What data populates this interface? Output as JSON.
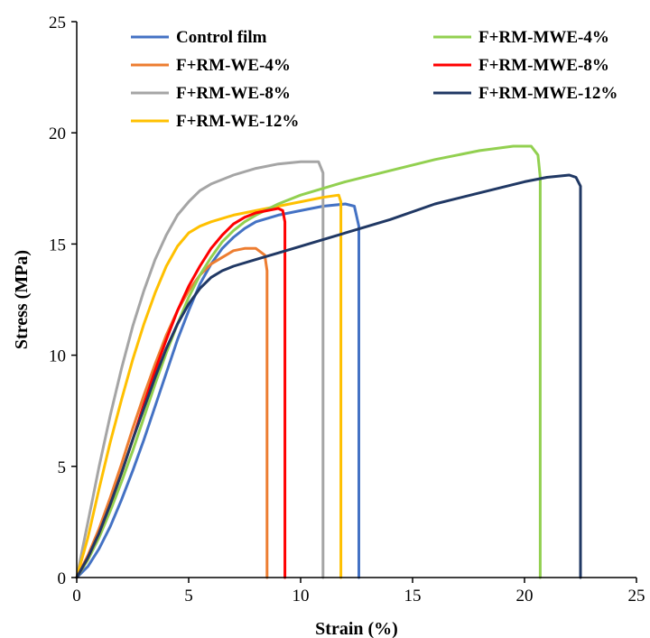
{
  "chart_data": {
    "type": "line",
    "title": "",
    "xlabel": "Strain (%)",
    "ylabel": "Stress (MPa)",
    "xlim": [
      0,
      25
    ],
    "ylim": [
      0,
      25
    ],
    "xticks": [
      "0",
      "5",
      "10",
      "15",
      "20",
      "25"
    ],
    "yticks": [
      "0",
      "5",
      "10",
      "15",
      "20",
      "25"
    ],
    "grid": false,
    "legend_position": "top",
    "series": [
      {
        "name": "Control film",
        "color": "#4472C4",
        "points": [
          [
            0,
            0
          ],
          [
            0.5,
            0.5
          ],
          [
            1,
            1.3
          ],
          [
            1.5,
            2.3
          ],
          [
            2,
            3.5
          ],
          [
            2.5,
            4.8
          ],
          [
            3,
            6.2
          ],
          [
            3.5,
            7.7
          ],
          [
            4,
            9.2
          ],
          [
            4.5,
            10.7
          ],
          [
            5,
            12.0
          ],
          [
            5.5,
            13.2
          ],
          [
            6,
            14.1
          ],
          [
            6.5,
            14.8
          ],
          [
            7,
            15.3
          ],
          [
            7.5,
            15.7
          ],
          [
            8,
            16.0
          ],
          [
            9,
            16.3
          ],
          [
            10,
            16.5
          ],
          [
            11,
            16.7
          ],
          [
            12,
            16.8
          ],
          [
            12.4,
            16.7
          ],
          [
            12.6,
            15.8
          ],
          [
            12.6,
            0
          ]
        ]
      },
      {
        "name": "F+RM-WE-4%",
        "color": "#ED7D31",
        "points": [
          [
            0,
            0
          ],
          [
            0.5,
            1.0
          ],
          [
            1,
            2.2
          ],
          [
            1.5,
            3.6
          ],
          [
            2,
            5.1
          ],
          [
            2.5,
            6.7
          ],
          [
            3,
            8.2
          ],
          [
            3.5,
            9.6
          ],
          [
            4,
            10.9
          ],
          [
            4.5,
            12.0
          ],
          [
            5,
            12.9
          ],
          [
            5.5,
            13.6
          ],
          [
            6,
            14.1
          ],
          [
            6.5,
            14.4
          ],
          [
            7,
            14.7
          ],
          [
            7.5,
            14.8
          ],
          [
            8,
            14.8
          ],
          [
            8.4,
            14.5
          ],
          [
            8.5,
            13.8
          ],
          [
            8.5,
            0
          ]
        ]
      },
      {
        "name": "F+RM-WE-8%",
        "color": "#A5A5A5",
        "points": [
          [
            0,
            0
          ],
          [
            0.3,
            1.5
          ],
          [
            0.7,
            3.5
          ],
          [
            1,
            5.0
          ],
          [
            1.5,
            7.3
          ],
          [
            2,
            9.4
          ],
          [
            2.5,
            11.3
          ],
          [
            3,
            12.9
          ],
          [
            3.5,
            14.3
          ],
          [
            4,
            15.4
          ],
          [
            4.5,
            16.3
          ],
          [
            5,
            16.9
          ],
          [
            5.5,
            17.4
          ],
          [
            6,
            17.7
          ],
          [
            7,
            18.1
          ],
          [
            8,
            18.4
          ],
          [
            9,
            18.6
          ],
          [
            10,
            18.7
          ],
          [
            10.8,
            18.7
          ],
          [
            11,
            18.2
          ],
          [
            11,
            0
          ]
        ]
      },
      {
        "name": "F+RM-WE-12%",
        "color": "#FFC000",
        "points": [
          [
            0,
            0
          ],
          [
            0.5,
            1.8
          ],
          [
            1,
            4.0
          ],
          [
            1.5,
            6.1
          ],
          [
            2,
            8.0
          ],
          [
            2.5,
            9.8
          ],
          [
            3,
            11.4
          ],
          [
            3.5,
            12.8
          ],
          [
            4,
            14.0
          ],
          [
            4.5,
            14.9
          ],
          [
            5,
            15.5
          ],
          [
            5.5,
            15.8
          ],
          [
            6,
            16.0
          ],
          [
            7,
            16.3
          ],
          [
            8,
            16.5
          ],
          [
            9,
            16.7
          ],
          [
            10,
            16.9
          ],
          [
            11,
            17.1
          ],
          [
            11.7,
            17.2
          ],
          [
            11.8,
            16.9
          ],
          [
            11.8,
            0
          ]
        ]
      },
      {
        "name": "F+RM-MWE-4%",
        "color": "#92D050",
        "points": [
          [
            0,
            0
          ],
          [
            0.5,
            0.8
          ],
          [
            1,
            1.8
          ],
          [
            1.5,
            3.0
          ],
          [
            2,
            4.3
          ],
          [
            2.5,
            5.7
          ],
          [
            3,
            7.2
          ],
          [
            3.5,
            8.7
          ],
          [
            4,
            10.1
          ],
          [
            4.5,
            11.4
          ],
          [
            5,
            12.6
          ],
          [
            5.5,
            13.6
          ],
          [
            6,
            14.4
          ],
          [
            6.5,
            15.1
          ],
          [
            7,
            15.6
          ],
          [
            7.5,
            16.0
          ],
          [
            8,
            16.3
          ],
          [
            9,
            16.8
          ],
          [
            10,
            17.2
          ],
          [
            12,
            17.8
          ],
          [
            14,
            18.3
          ],
          [
            16,
            18.8
          ],
          [
            18,
            19.2
          ],
          [
            19.5,
            19.4
          ],
          [
            20.3,
            19.4
          ],
          [
            20.6,
            19.0
          ],
          [
            20.7,
            18.0
          ],
          [
            20.7,
            0
          ]
        ]
      },
      {
        "name": "F+RM-MWE-8%",
        "color": "#FF0000",
        "points": [
          [
            0,
            0
          ],
          [
            0.5,
            0.9
          ],
          [
            1,
            2.0
          ],
          [
            1.5,
            3.3
          ],
          [
            2,
            4.7
          ],
          [
            2.5,
            6.2
          ],
          [
            3,
            7.8
          ],
          [
            3.5,
            9.3
          ],
          [
            4,
            10.7
          ],
          [
            4.5,
            12.0
          ],
          [
            5,
            13.1
          ],
          [
            5.5,
            14.0
          ],
          [
            6,
            14.8
          ],
          [
            6.5,
            15.4
          ],
          [
            7,
            15.9
          ],
          [
            7.5,
            16.2
          ],
          [
            8,
            16.4
          ],
          [
            8.5,
            16.5
          ],
          [
            9,
            16.6
          ],
          [
            9.2,
            16.5
          ],
          [
            9.3,
            16.0
          ],
          [
            9.3,
            0
          ]
        ]
      },
      {
        "name": "F+RM-MWE-12%",
        "color": "#203864",
        "points": [
          [
            0,
            0
          ],
          [
            0.5,
            0.9
          ],
          [
            1,
            2.0
          ],
          [
            1.5,
            3.3
          ],
          [
            2,
            4.7
          ],
          [
            2.5,
            6.2
          ],
          [
            3,
            7.6
          ],
          [
            3.5,
            9.0
          ],
          [
            4,
            10.3
          ],
          [
            4.5,
            11.4
          ],
          [
            5,
            12.3
          ],
          [
            5.5,
            13.0
          ],
          [
            6,
            13.5
          ],
          [
            6.5,
            13.8
          ],
          [
            7,
            14.0
          ],
          [
            8,
            14.3
          ],
          [
            9,
            14.6
          ],
          [
            10,
            14.9
          ],
          [
            12,
            15.5
          ],
          [
            14,
            16.1
          ],
          [
            16,
            16.8
          ],
          [
            18,
            17.3
          ],
          [
            20,
            17.8
          ],
          [
            21,
            18.0
          ],
          [
            22,
            18.1
          ],
          [
            22.3,
            18.0
          ],
          [
            22.5,
            17.6
          ],
          [
            22.5,
            0
          ]
        ]
      }
    ]
  }
}
